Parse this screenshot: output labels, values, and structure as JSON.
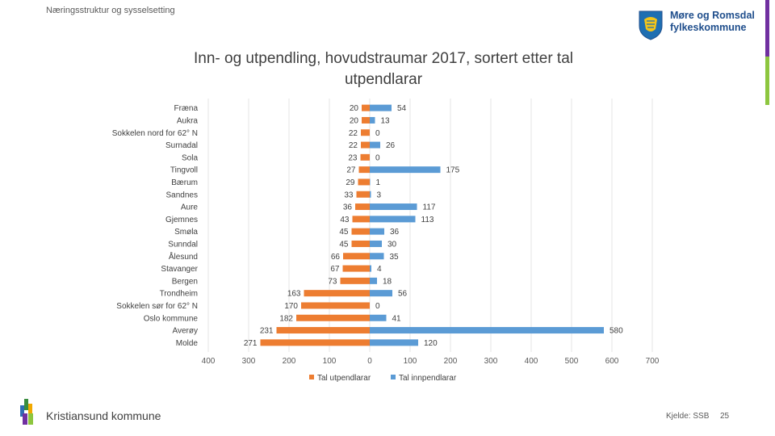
{
  "header": {
    "section": "Næringsstruktur og sysselsetting"
  },
  "logo": {
    "line1": "Møre og Romsdal",
    "line2": "fylkeskommune"
  },
  "footer": {
    "organisation": "Kristiansund kommune",
    "source": "Kjelde: SSB",
    "page": "25"
  },
  "colors": {
    "out": "#ed7d31",
    "in": "#5b9bd5",
    "accent_bar": "#7030a0"
  },
  "chart_data": {
    "type": "bar",
    "orientation": "horizontal",
    "title": "Inn- og utpendling, hovudstraumar 2017, sortert etter tal utpendlarar",
    "categories": [
      "Fræna",
      "Aukra",
      "Sokkelen nord for 62° N",
      "Surnadal",
      "Sola",
      "Tingvoll",
      "Bærum",
      "Sandnes",
      "Aure",
      "Gjemnes",
      "Smøla",
      "Sunndal",
      "Ålesund",
      "Stavanger",
      "Bergen",
      "Trondheim",
      "Sokkelen sør for 62° N",
      "Oslo kommune",
      "Averøy",
      "Molde"
    ],
    "series": [
      {
        "name": "Tal utpendlarar",
        "values": [
          20,
          20,
          22,
          22,
          23,
          27,
          29,
          33,
          36,
          43,
          45,
          45,
          66,
          67,
          73,
          163,
          170,
          182,
          231,
          271
        ],
        "direction": "negative"
      },
      {
        "name": "Tal innpendlarar",
        "values": [
          54,
          13,
          0,
          26,
          0,
          175,
          1,
          3,
          117,
          113,
          36,
          30,
          35,
          4,
          18,
          56,
          0,
          41,
          580,
          120
        ],
        "direction": "positive"
      }
    ],
    "xlim": [
      -400,
      700
    ],
    "xticks": [
      -400,
      -300,
      -200,
      -100,
      0,
      100,
      200,
      300,
      400,
      500,
      600,
      700
    ],
    "xtick_labels": [
      "400",
      "300",
      "200",
      "100",
      "0",
      "100",
      "200",
      "300",
      "400",
      "500",
      "600",
      "700"
    ],
    "legend_position": "bottom",
    "grid": true
  }
}
